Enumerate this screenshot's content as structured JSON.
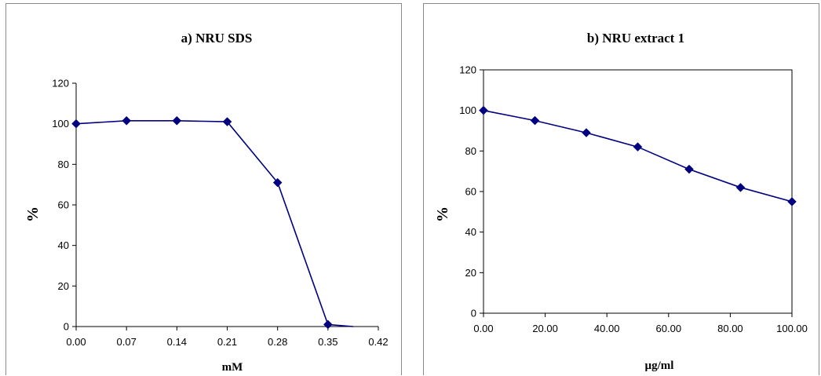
{
  "chart_data": [
    {
      "type": "line",
      "title": "a) NRU SDS",
      "xlabel": "mM",
      "ylabel": "%",
      "x_ticks": [
        "0.00",
        "0.07",
        "0.14",
        "0.21",
        "0.28",
        "0.35",
        "0.42"
      ],
      "y_ticks": [
        "0",
        "20",
        "40",
        "60",
        "80",
        "100",
        "120"
      ],
      "xlim": [
        0,
        0.42
      ],
      "ylim": [
        0,
        120
      ],
      "grid": false,
      "series": [
        {
          "x": [
            0.0,
            0.07,
            0.14,
            0.21,
            0.28,
            0.35
          ],
          "y": [
            100,
            101.5,
            101.5,
            101,
            71,
            1
          ],
          "tail": {
            "x": [
              0.35,
              0.385
            ],
            "y": [
              1,
              0
            ]
          }
        }
      ],
      "color": "#000080"
    },
    {
      "type": "line",
      "title": "b) NRU extract 1",
      "xlabel": "µg/ml",
      "ylabel": "%",
      "x_ticks": [
        "0.00",
        "20.00",
        "40.00",
        "60.00",
        "80.00",
        "100.00"
      ],
      "y_ticks": [
        "0",
        "20",
        "40",
        "60",
        "80",
        "100",
        "120"
      ],
      "xlim": [
        0,
        100
      ],
      "ylim": [
        0,
        120
      ],
      "grid": false,
      "frame": true,
      "series": [
        {
          "x": [
            0,
            16.67,
            33.33,
            50,
            66.67,
            83.33,
            100
          ],
          "y": [
            100,
            95,
            89,
            82,
            71,
            62,
            55
          ]
        }
      ],
      "color": "#000080"
    }
  ]
}
